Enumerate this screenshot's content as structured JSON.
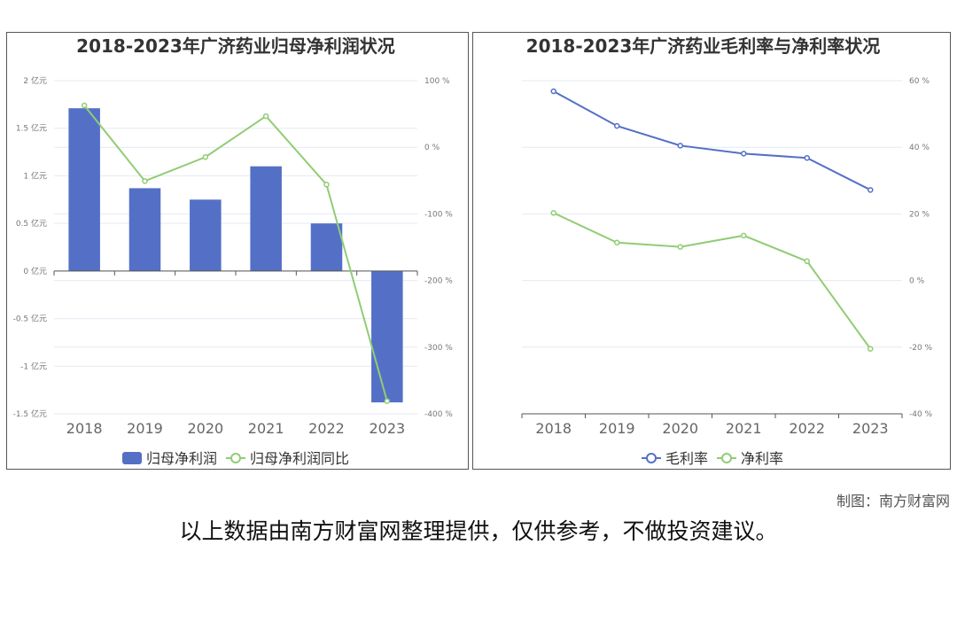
{
  "chart_data": [
    {
      "type": "bar+line",
      "title": "2018-2023年广济药业归母净利润状况",
      "categories": [
        "2018",
        "2019",
        "2020",
        "2021",
        "2022",
        "2023"
      ],
      "series": [
        {
          "name": "归母净利润",
          "kind": "bar",
          "axis": "left",
          "unit": "亿元",
          "values": [
            1.71,
            0.87,
            0.75,
            1.1,
            0.5,
            -1.38
          ],
          "color": "#5470c6"
        },
        {
          "name": "归母净利润同比",
          "kind": "line",
          "axis": "right",
          "unit": "%",
          "values": [
            62.7,
            -50.7,
            -14.7,
            46.7,
            -56.0,
            -381.0
          ],
          "color": "#91cc75"
        }
      ],
      "left_axis": {
        "range": [
          -1.5,
          2
        ],
        "ticks": [
          "2 亿元",
          "1.5 亿元",
          "1 亿元",
          "0.5 亿元",
          "0 亿元",
          "-0.5 亿元",
          "-1 亿元",
          "-1.5 亿元"
        ],
        "tick_values": [
          2,
          1.5,
          1,
          0.5,
          0,
          -0.5,
          -1,
          -1.5
        ]
      },
      "right_axis": {
        "range": [
          -400,
          100
        ],
        "ticks": [
          "100 %",
          "0 %",
          "-100 %",
          "-200 %",
          "-300 %",
          "-400 %"
        ],
        "tick_values": [
          100,
          0,
          -100,
          -200,
          -300,
          -400
        ]
      },
      "legend": "bottom-center"
    },
    {
      "type": "line",
      "title": "2018-2023年广济药业毛利率与净利率状况",
      "categories": [
        "2018",
        "2019",
        "2020",
        "2021",
        "2022",
        "2023"
      ],
      "series": [
        {
          "name": "毛利率",
          "values": [
            56.8,
            46.4,
            40.5,
            38.1,
            36.8,
            27.2
          ],
          "color": "#5470c6"
        },
        {
          "name": "净利率",
          "values": [
            20.3,
            11.4,
            10.1,
            13.5,
            5.8,
            -20.5
          ],
          "color": "#91cc75"
        }
      ],
      "right_axis": {
        "range": [
          -40,
          60
        ],
        "ticks": [
          "60 %",
          "40 %",
          "20 %",
          "0 %",
          "-20 %",
          "-40 %"
        ],
        "tick_values": [
          60,
          40,
          20,
          0,
          -20,
          -40
        ]
      },
      "legend": "bottom-center"
    }
  ],
  "footer": {
    "credit": "制图：南方财富网",
    "disclaimer": "以上数据由南方财富网整理提供，仅供参考，不做投资建议。"
  }
}
